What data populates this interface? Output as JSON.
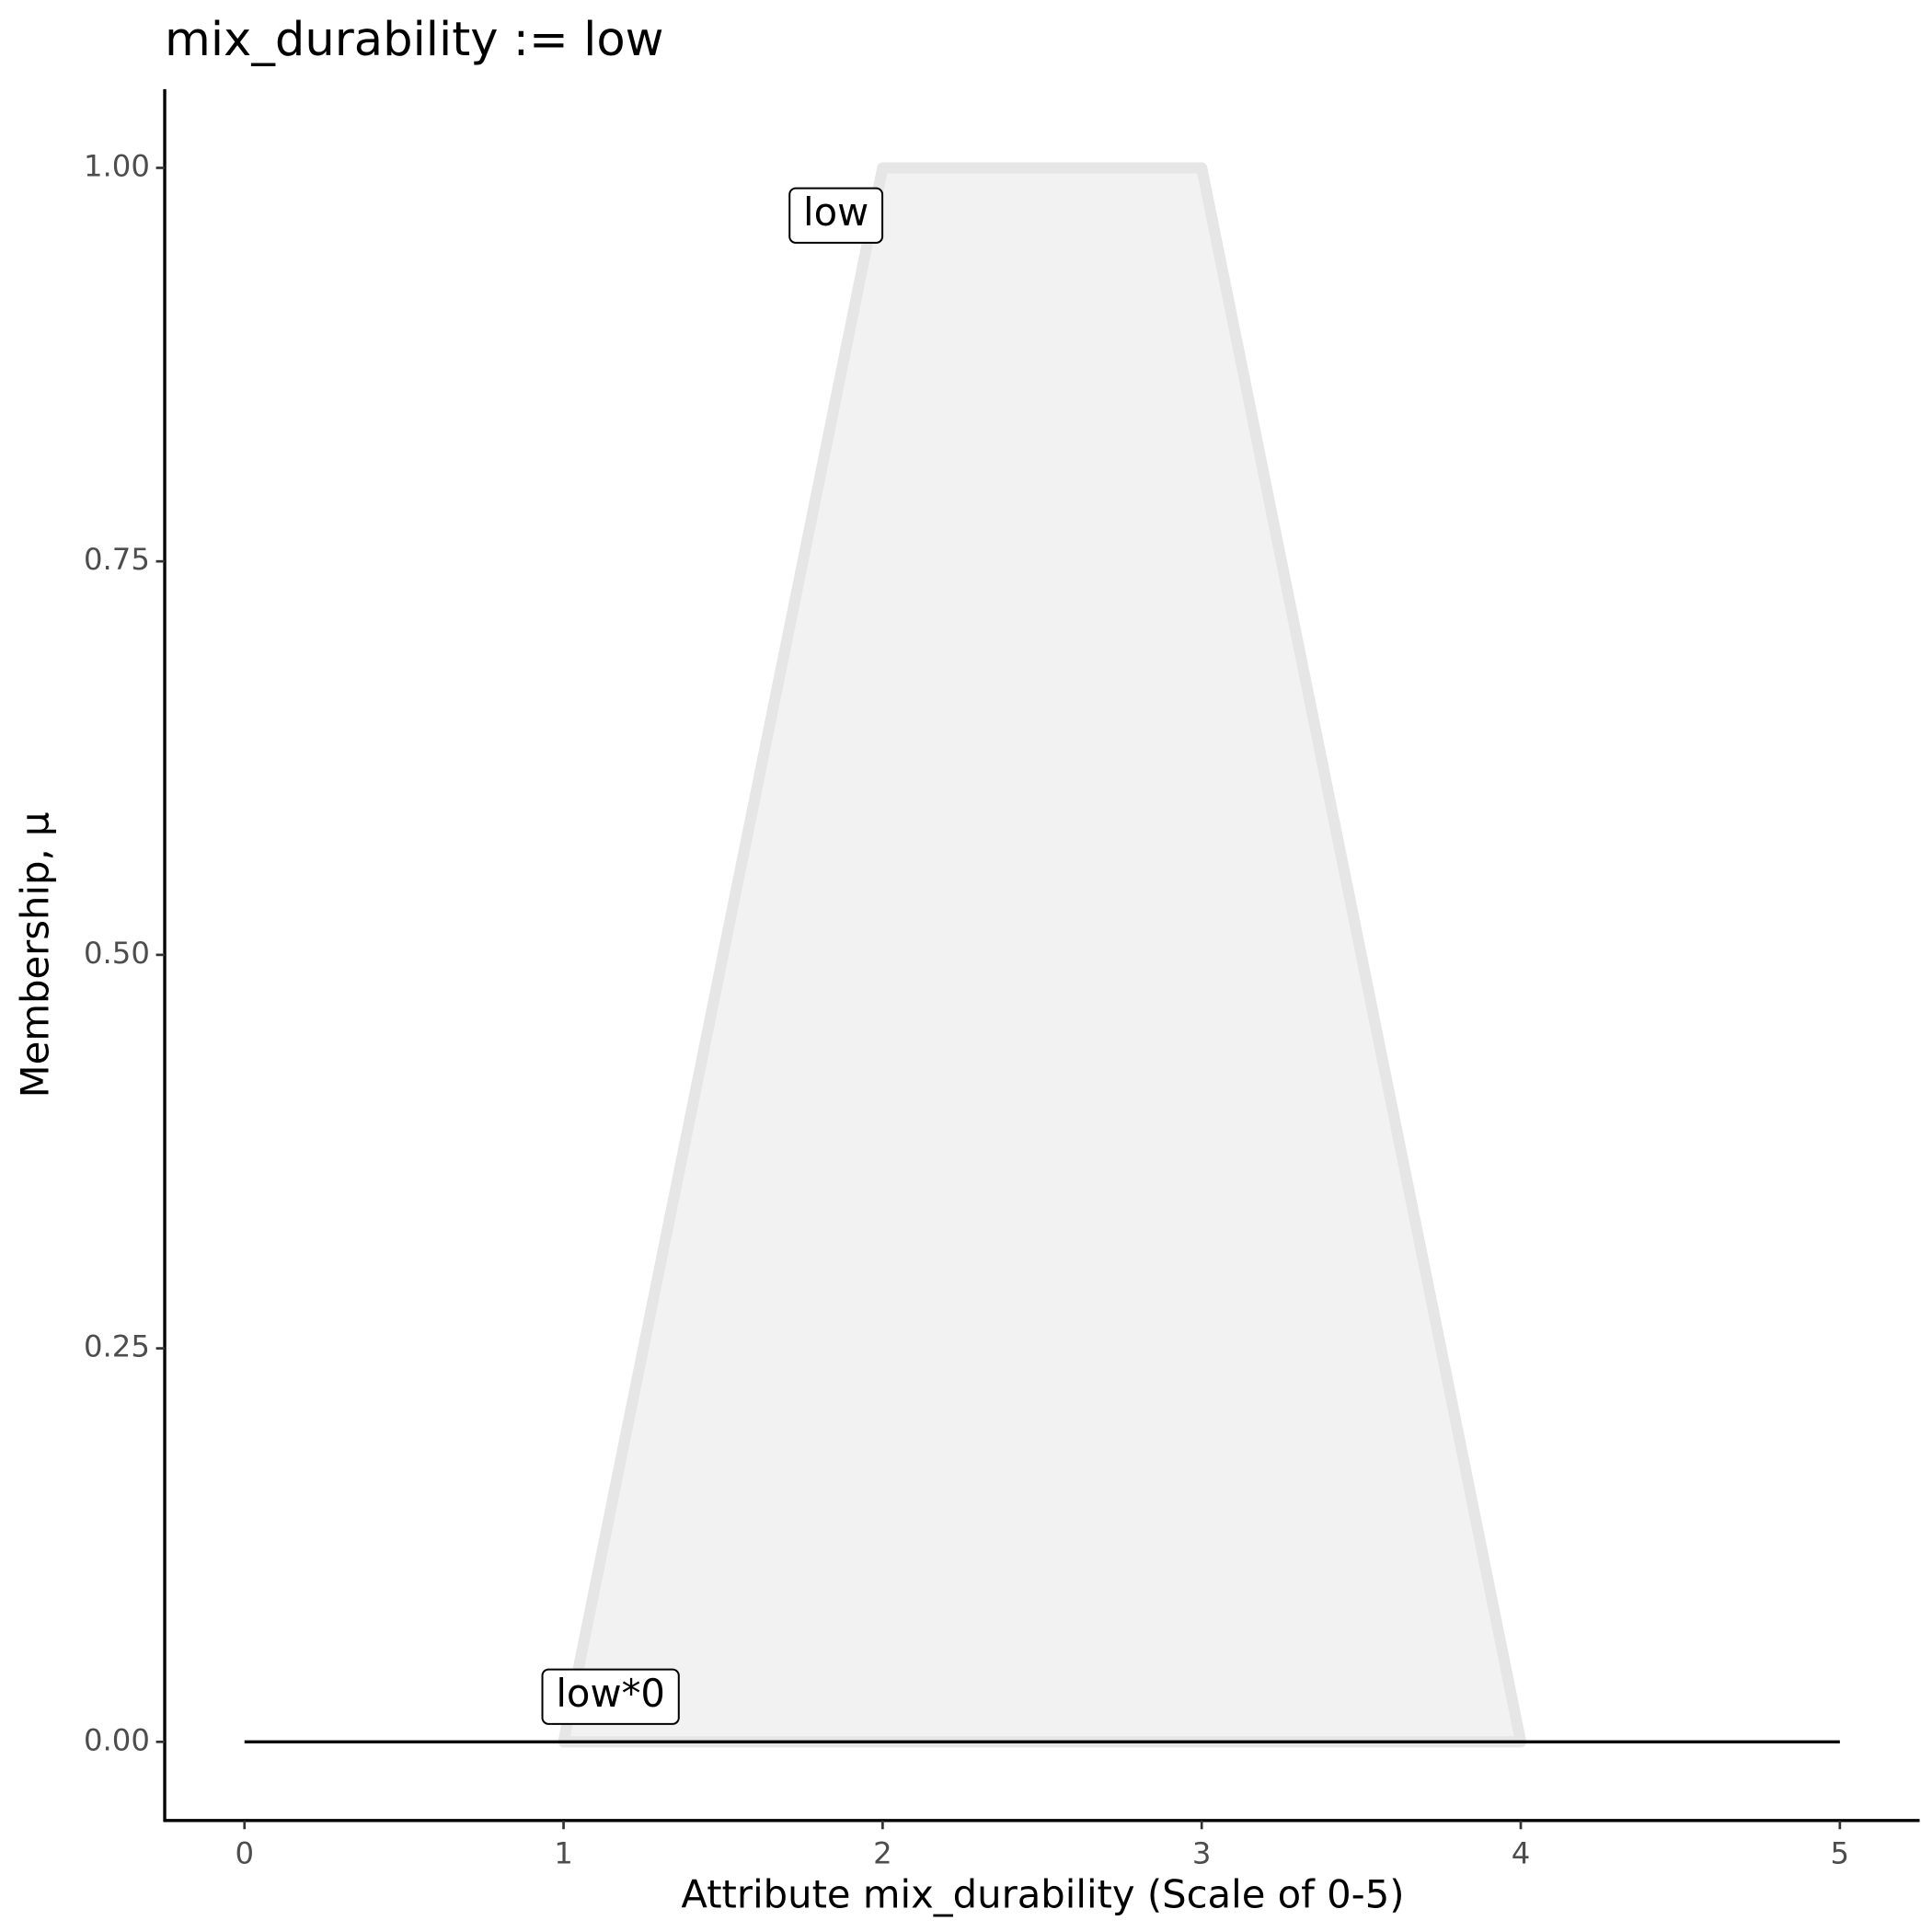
{
  "chart_data": {
    "type": "line",
    "title": "mix_durability := low",
    "x_label": "Attribute mix_durability (Scale of 0-5)",
    "y_label": "Membership, μ",
    "series": [
      {
        "name": "low",
        "color": "#e6e6e6",
        "fill": "#f2f2f2",
        "x": [
          1,
          2,
          3,
          4
        ],
        "values": [
          0,
          1,
          1,
          0
        ]
      },
      {
        "name": "low*0",
        "color": "#000000",
        "x": [
          0,
          5
        ],
        "values": [
          0,
          0
        ]
      }
    ],
    "xlim": [
      -0.25,
      5.25
    ],
    "ylim": [
      -0.05,
      1.05
    ],
    "xticks": [
      0,
      1,
      2,
      3,
      4,
      5
    ],
    "yticks": [
      {
        "value": 0,
        "label": "0.00"
      },
      {
        "value": 0.25,
        "label": "0.25"
      },
      {
        "value": 0.5,
        "label": "0.50"
      },
      {
        "value": 0.75,
        "label": "0.75"
      },
      {
        "value": 1,
        "label": "1.00"
      }
    ]
  }
}
